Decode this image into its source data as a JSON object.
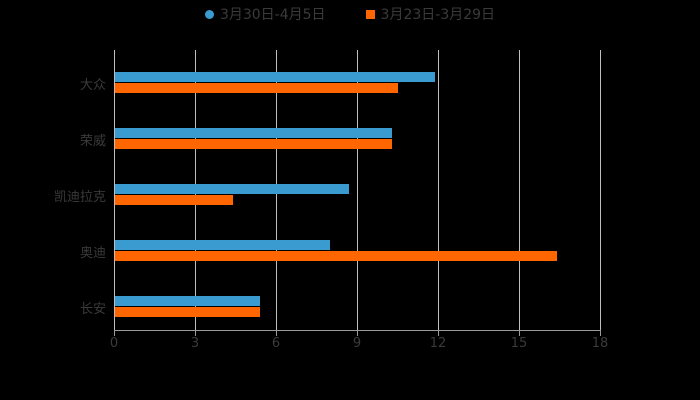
{
  "chart_data": {
    "type": "bar",
    "orientation": "horizontal",
    "title": "",
    "categories": [
      "大众",
      "荣威",
      "凯迪拉克",
      "奥迪",
      "长安"
    ],
    "series": [
      {
        "name": "3月30日-4月5日",
        "color": "#3a9bd0",
        "values": [
          11.9,
          10.3,
          8.7,
          8.0,
          5.4
        ]
      },
      {
        "name": "3月23日-3月29日",
        "color": "#ff6600",
        "values": [
          10.5,
          10.3,
          4.4,
          16.4,
          5.4
        ]
      }
    ],
    "xlabel": "",
    "ylabel": "",
    "xlim": [
      0,
      18
    ],
    "xticks": [
      "0",
      "3",
      "6",
      "9",
      "12",
      "15",
      "18"
    ],
    "grid": true,
    "legend_position": "top"
  },
  "legend": {
    "items": [
      {
        "label": "3月30日-4月5日",
        "color": "#3a9bd0",
        "marker": "circle"
      },
      {
        "label": "3月23日-3月29日",
        "color": "#ff6600",
        "marker": "square"
      }
    ]
  }
}
